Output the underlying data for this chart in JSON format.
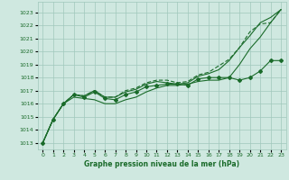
{
  "xlabel": "Graphe pression niveau de la mer (hPa)",
  "ylim": [
    1012.5,
    1023.8
  ],
  "xlim": [
    -0.5,
    23.5
  ],
  "ytick_vals": [
    1013,
    1014,
    1015,
    1016,
    1017,
    1018,
    1019,
    1020,
    1021,
    1022,
    1023
  ],
  "xtick_vals": [
    0,
    1,
    2,
    3,
    4,
    5,
    6,
    7,
    8,
    9,
    10,
    11,
    12,
    13,
    14,
    15,
    16,
    17,
    18,
    19,
    20,
    21,
    22,
    23
  ],
  "bg_color": "#cfe8e0",
  "grid_color": "#a0c8bc",
  "line_color": "#1a6b2a",
  "series_bottom": [
    1013.0,
    1014.8,
    1016.0,
    1016.5,
    1016.4,
    1016.3,
    1016.0,
    1016.0,
    1016.3,
    1016.5,
    1016.9,
    1017.2,
    1017.4,
    1017.4,
    1017.5,
    1017.7,
    1017.8,
    1017.8,
    1018.0,
    1019.0,
    1020.2,
    1021.1,
    1022.2,
    1023.2
  ],
  "series_markers": [
    1013.0,
    1014.8,
    1016.0,
    1016.7,
    1016.5,
    1016.9,
    1016.4,
    1016.3,
    1016.7,
    1016.9,
    1017.3,
    1017.4,
    1017.5,
    1017.5,
    1017.4,
    1017.9,
    1018.0,
    1018.0,
    1018.0,
    1017.8,
    1018.0,
    1018.5,
    1019.3,
    1019.3
  ],
  "series_top": [
    1013.0,
    1014.8,
    1016.0,
    1016.7,
    1016.6,
    1017.0,
    1016.5,
    1016.5,
    1016.9,
    1017.1,
    1017.5,
    1017.7,
    1017.6,
    1017.5,
    1017.6,
    1018.1,
    1018.3,
    1018.6,
    1019.3,
    1020.3,
    1021.2,
    1022.2,
    1022.6,
    1023.2
  ],
  "series_steep": [
    1013.0,
    1014.8,
    1016.0,
    1016.7,
    1016.6,
    1017.0,
    1016.5,
    1016.5,
    1017.0,
    1017.2,
    1017.6,
    1017.8,
    1017.8,
    1017.6,
    1017.7,
    1018.2,
    1018.4,
    1018.9,
    1019.4,
    1020.3,
    1021.5,
    1022.1,
    1022.2,
    1023.2
  ]
}
